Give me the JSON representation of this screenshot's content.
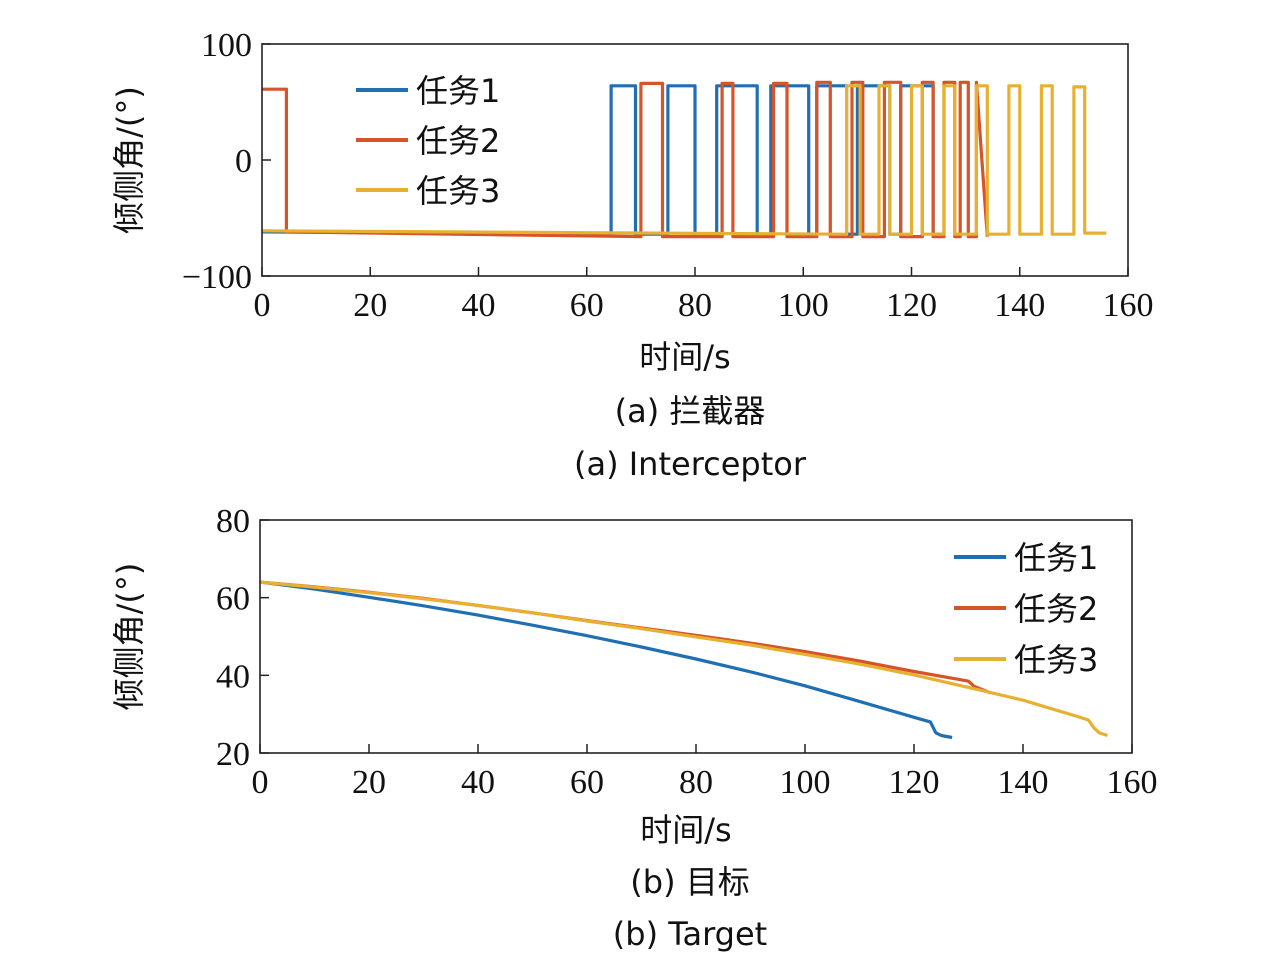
{
  "colors": {
    "task1": "#1f6fb2",
    "task2": "#d5542a",
    "task3": "#e8b030"
  },
  "chart_data": [
    {
      "type": "line",
      "caption_cn": "(a) 拦截器",
      "caption_en": "(a) Interceptor",
      "xlabel": "时间/s",
      "ylabel": "倾侧角/(°)",
      "xlim": [
        0,
        160
      ],
      "ylim": [
        -100,
        100
      ],
      "xticks": [
        0,
        20,
        40,
        60,
        80,
        100,
        120,
        140,
        160
      ],
      "yticks": [
        -100,
        0,
        100
      ],
      "ytick_labels": [
        "−100",
        "0",
        "100"
      ],
      "legend_position": "top-left",
      "series": [
        {
          "name": "任务1",
          "color": "#1f6fb2",
          "x": [
            0,
            64.5,
            64.5,
            69,
            69,
            75,
            75,
            80,
            80,
            84,
            84,
            91.5,
            91.5,
            94,
            94,
            101,
            101,
            102.5,
            102.5,
            108,
            108,
            110,
            110,
            116,
            116,
            118,
            118,
            124,
            124,
            126
          ],
          "y": [
            -62,
            -64,
            64,
            64,
            -64,
            -64,
            64,
            64,
            -64,
            -64,
            64,
            64,
            -64,
            -64,
            64,
            64,
            -64,
            -64,
            64,
            64,
            -64,
            -64,
            64,
            64,
            -64,
            -64,
            64,
            64,
            -64,
            -64
          ]
        },
        {
          "name": "任务2",
          "color": "#d5542a",
          "x": [
            0,
            4.5,
            4.5,
            70,
            70,
            74,
            74,
            85,
            85,
            87,
            87,
            94.5,
            94.5,
            97,
            97,
            102.5,
            102.5,
            105,
            105,
            109,
            109,
            111,
            111,
            115,
            115,
            118,
            118,
            122,
            122,
            124,
            124,
            126,
            126,
            128,
            128,
            129,
            129,
            130.5,
            130.5,
            132,
            132,
            134
          ],
          "y": [
            61,
            61,
            -62,
            -66,
            66,
            66,
            -66,
            -66,
            66,
            66,
            -66,
            -66,
            66,
            66,
            -66,
            -66,
            67,
            67,
            -66,
            -66,
            67,
            67,
            -66,
            -66,
            67,
            67,
            -66,
            -66,
            67,
            67,
            -66,
            -66,
            67,
            67,
            -66,
            -66,
            67,
            67,
            -66,
            -66,
            67,
            -66
          ]
        },
        {
          "name": "任务3",
          "color": "#e8b030",
          "x": [
            0,
            108,
            108,
            110.5,
            110.5,
            114,
            114,
            116,
            116,
            120,
            120,
            122,
            122,
            126,
            126,
            128,
            128,
            132,
            132,
            134,
            134,
            138,
            138,
            140,
            140,
            144,
            144,
            146,
            146,
            150,
            150,
            152,
            152,
            156
          ],
          "y": [
            -61,
            -64,
            64,
            64,
            -64,
            -64,
            64,
            64,
            -64,
            -64,
            64,
            64,
            -64,
            -64,
            64,
            64,
            -64,
            -64,
            64,
            64,
            -64,
            -64,
            64,
            64,
            -64,
            -64,
            64,
            64,
            -64,
            -64,
            63,
            63,
            -63,
            -63
          ]
        }
      ]
    },
    {
      "type": "line",
      "caption_cn": "(b) 目标",
      "caption_en": "(b) Target",
      "xlabel": "时间/s",
      "ylabel": "倾侧角/(°)",
      "xlim": [
        0,
        160
      ],
      "ylim": [
        20,
        80
      ],
      "xticks": [
        0,
        20,
        40,
        60,
        80,
        100,
        120,
        140,
        160
      ],
      "yticks": [
        20,
        40,
        60,
        80
      ],
      "ytick_labels": [
        "20",
        "40",
        "60",
        "80"
      ],
      "legend_position": "top-right",
      "series": [
        {
          "name": "任务1",
          "color": "#1f6fb2",
          "x": [
            0,
            10,
            20,
            30,
            40,
            50,
            60,
            70,
            80,
            90,
            100,
            110,
            120,
            123,
            124,
            125,
            127
          ],
          "y": [
            64,
            62.2,
            60.1,
            57.9,
            55.5,
            52.9,
            50.2,
            47.3,
            44.2,
            40.9,
            37.3,
            33.3,
            29.2,
            28,
            25.2,
            24.5,
            24
          ]
        },
        {
          "name": "任务2",
          "color": "#d5542a",
          "x": [
            0,
            10,
            20,
            30,
            40,
            50,
            60,
            70,
            80,
            90,
            100,
            110,
            120,
            128,
            130,
            131,
            134
          ],
          "y": [
            64,
            62.8,
            61.4,
            59.8,
            58,
            56.1,
            54.1,
            52.2,
            50.3,
            48.3,
            46.1,
            43.7,
            41,
            39,
            38.5,
            37.2,
            35.5
          ]
        },
        {
          "name": "任务3",
          "color": "#e8b030",
          "x": [
            0,
            10,
            20,
            30,
            40,
            50,
            60,
            70,
            80,
            90,
            100,
            110,
            120,
            130,
            140,
            150,
            152,
            153,
            154,
            155.5
          ],
          "y": [
            64,
            62.7,
            61.3,
            59.7,
            58,
            56.1,
            54,
            52,
            49.9,
            47.8,
            45.4,
            42.9,
            40.1,
            36.9,
            33.6,
            29.4,
            28.5,
            26.5,
            25.2,
            24.5
          ]
        }
      ]
    }
  ]
}
